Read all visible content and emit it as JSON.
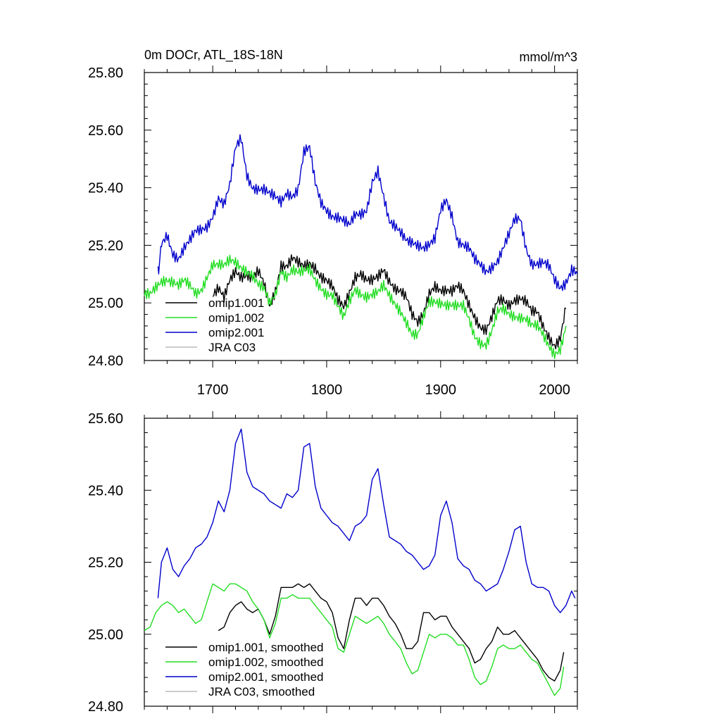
{
  "chart_data": [
    {
      "type": "line",
      "title": "0m DOCr, ATL_18S-18N",
      "units": "mmol/m^3",
      "xlim": [
        1640,
        2020
      ],
      "ylim": [
        24.8,
        25.8
      ],
      "yticks": [
        24.8,
        25.0,
        25.2,
        25.4,
        25.6,
        25.8
      ],
      "ytick_labels": [
        "24.80",
        "25.00",
        "25.20",
        "25.40",
        "25.60",
        "25.80"
      ],
      "xticks": [
        1700,
        1800,
        1900,
        2000
      ],
      "xtick_labels": [
        "1700",
        "1800",
        "1900",
        "2000"
      ],
      "legend": [
        "omip1.001",
        "omip1.002",
        "omip2.001",
        "JRA C03"
      ],
      "series": [
        {
          "name": "omip1.001",
          "color": "#000000",
          "x": [
            1700,
            1705,
            1710,
            1715,
            1720,
            1725,
            1730,
            1735,
            1740,
            1745,
            1750,
            1755,
            1760,
            1765,
            1770,
            1775,
            1780,
            1785,
            1790,
            1795,
            1800,
            1805,
            1810,
            1815,
            1820,
            1825,
            1830,
            1835,
            1840,
            1845,
            1850,
            1855,
            1860,
            1865,
            1870,
            1875,
            1880,
            1885,
            1890,
            1895,
            1900,
            1905,
            1910,
            1915,
            1920,
            1925,
            1930,
            1935,
            1940,
            1945,
            1950,
            1955,
            1960,
            1965,
            1970,
            1975,
            1980,
            1985,
            1990,
            1995,
            2000,
            2005,
            2010
          ],
          "values": [
            25.02,
            25.04,
            25.01,
            25.08,
            25.12,
            25.1,
            25.1,
            25.08,
            25.1,
            25.06,
            24.99,
            25.05,
            25.14,
            25.13,
            25.15,
            25.13,
            25.12,
            25.14,
            25.13,
            25.1,
            25.08,
            25.05,
            25.0,
            24.98,
            25.04,
            25.1,
            25.11,
            25.08,
            25.07,
            25.08,
            25.11,
            25.08,
            25.06,
            25.05,
            25.02,
            24.95,
            24.92,
            24.96,
            25.04,
            25.07,
            25.05,
            25.04,
            25.03,
            25.05,
            25.04,
            25.0,
            24.96,
            24.92,
            24.9,
            24.94,
            25.0,
            25.01,
            25.0,
            25.02,
            25.02,
            25.0,
            24.96,
            24.96,
            24.92,
            24.89,
            24.86,
            24.88,
            24.98
          ]
        },
        {
          "name": "omip1.002",
          "color": "#22dd22",
          "x": [
            1640,
            1645,
            1650,
            1655,
            1660,
            1665,
            1670,
            1675,
            1680,
            1685,
            1690,
            1695,
            1700,
            1705,
            1710,
            1715,
            1720,
            1725,
            1730,
            1735,
            1740,
            1745,
            1750,
            1755,
            1760,
            1765,
            1770,
            1775,
            1780,
            1785,
            1790,
            1795,
            1800,
            1805,
            1810,
            1815,
            1820,
            1825,
            1830,
            1835,
            1840,
            1845,
            1850,
            1855,
            1860,
            1865,
            1870,
            1875,
            1880,
            1885,
            1890,
            1895,
            1900,
            1905,
            1910,
            1915,
            1920,
            1925,
            1930,
            1935,
            1940,
            1945,
            1950,
            1955,
            1960,
            1965,
            1970,
            1975,
            1980,
            1985,
            1990,
            1995,
            2000,
            2005,
            2010
          ],
          "values": [
            25.02,
            25.02,
            25.05,
            25.08,
            25.09,
            25.08,
            25.06,
            25.07,
            25.05,
            25.03,
            25.05,
            25.1,
            25.14,
            25.13,
            25.12,
            25.14,
            25.14,
            25.13,
            25.12,
            25.1,
            25.06,
            25.04,
            24.99,
            25.03,
            25.12,
            25.1,
            25.12,
            25.1,
            25.1,
            25.11,
            25.08,
            25.06,
            25.04,
            25.03,
            24.98,
            24.94,
            25.0,
            25.05,
            25.04,
            25.03,
            25.03,
            25.03,
            25.05,
            25.02,
            25.0,
            24.98,
            24.94,
            24.89,
            24.88,
            24.94,
            25.0,
            25.01,
            25.01,
            25.0,
            24.99,
            24.98,
            24.98,
            24.94,
            24.89,
            24.87,
            24.86,
            24.9,
            24.96,
            24.97,
            24.96,
            24.96,
            24.96,
            24.95,
            24.92,
            24.91,
            24.88,
            24.85,
            24.83,
            24.85,
            24.92
          ]
        },
        {
          "name": "omip2.001",
          "color": "#0000cc",
          "x": [
            1652,
            1655,
            1660,
            1665,
            1670,
            1675,
            1680,
            1685,
            1690,
            1695,
            1700,
            1705,
            1710,
            1715,
            1720,
            1725,
            1730,
            1735,
            1740,
            1745,
            1750,
            1755,
            1760,
            1765,
            1770,
            1775,
            1780,
            1785,
            1790,
            1795,
            1800,
            1805,
            1810,
            1815,
            1820,
            1825,
            1830,
            1835,
            1840,
            1845,
            1850,
            1855,
            1860,
            1865,
            1870,
            1875,
            1880,
            1885,
            1890,
            1895,
            1900,
            1905,
            1910,
            1915,
            1920,
            1925,
            1930,
            1935,
            1940,
            1945,
            1950,
            1955,
            1960,
            1965,
            1970,
            1975,
            1980,
            1985,
            1990,
            1995,
            2000,
            2005,
            2010,
            2015,
            2020
          ],
          "values": [
            25.1,
            25.2,
            25.24,
            25.18,
            25.16,
            25.19,
            25.21,
            25.24,
            25.25,
            25.27,
            25.31,
            25.37,
            25.34,
            25.4,
            25.53,
            25.57,
            25.45,
            25.41,
            25.4,
            25.39,
            25.37,
            25.36,
            25.35,
            25.39,
            25.38,
            25.4,
            25.52,
            25.53,
            25.41,
            25.35,
            25.33,
            25.31,
            25.3,
            25.28,
            25.26,
            25.3,
            25.31,
            25.33,
            25.43,
            25.46,
            25.36,
            25.27,
            25.26,
            25.25,
            25.23,
            25.22,
            25.2,
            25.18,
            25.19,
            25.22,
            25.33,
            25.37,
            25.31,
            25.21,
            25.19,
            25.18,
            25.15,
            25.14,
            25.12,
            25.13,
            25.14,
            25.18,
            25.23,
            25.29,
            25.3,
            25.2,
            25.14,
            25.13,
            25.13,
            25.12,
            25.08,
            25.06,
            25.08,
            25.12,
            25.1
          ]
        },
        {
          "name": "JRA C03",
          "color": "#bbbbbb",
          "x": [],
          "values": []
        }
      ]
    },
    {
      "type": "line",
      "xlim": [
        1640,
        2020
      ],
      "ylim": [
        24.8,
        25.6
      ],
      "yticks": [
        24.8,
        25.0,
        25.2,
        25.4,
        25.6
      ],
      "ytick_labels": [
        "24.80",
        "25.00",
        "25.20",
        "25.40",
        "25.60"
      ],
      "xticks": [
        1700,
        1800,
        1900,
        2000
      ],
      "xtick_labels": [],
      "legend": [
        "omip1.001, smoothed",
        "omip1.002, smoothed",
        "omip2.001, smoothed",
        "JRA C03, smoothed"
      ],
      "series": [
        {
          "name": "omip1.001, smoothed",
          "color": "#000000",
          "x": [
            1705,
            1710,
            1715,
            1720,
            1725,
            1730,
            1735,
            1740,
            1745,
            1750,
            1755,
            1760,
            1765,
            1770,
            1775,
            1780,
            1785,
            1790,
            1795,
            1800,
            1805,
            1810,
            1815,
            1820,
            1825,
            1830,
            1835,
            1840,
            1845,
            1850,
            1855,
            1860,
            1865,
            1870,
            1875,
            1880,
            1885,
            1890,
            1895,
            1900,
            1905,
            1910,
            1915,
            1920,
            1925,
            1930,
            1935,
            1940,
            1945,
            1950,
            1955,
            1960,
            1965,
            1970,
            1975,
            1980,
            1985,
            1990,
            1995,
            2000,
            2005,
            2008
          ],
          "values": [
            25.01,
            25.02,
            25.06,
            25.08,
            25.09,
            25.07,
            25.06,
            25.07,
            25.04,
            25.0,
            25.05,
            25.13,
            25.13,
            25.13,
            25.14,
            25.13,
            25.14,
            25.12,
            25.1,
            25.09,
            25.06,
            24.99,
            24.96,
            25.04,
            25.1,
            25.1,
            25.08,
            25.1,
            25.1,
            25.08,
            25.05,
            25.03,
            25.0,
            24.96,
            24.96,
            24.98,
            25.06,
            25.06,
            25.04,
            25.05,
            25.05,
            25.02,
            25.0,
            24.98,
            24.96,
            24.92,
            24.93,
            24.96,
            24.98,
            25.02,
            25.0,
            25.0,
            25.01,
            24.99,
            24.97,
            24.95,
            24.93,
            24.9,
            24.88,
            24.87,
            24.9,
            24.95
          ]
        },
        {
          "name": "omip1.002, smoothed",
          "color": "#22dd22",
          "x": [
            1640,
            1645,
            1650,
            1655,
            1660,
            1665,
            1670,
            1675,
            1680,
            1685,
            1690,
            1695,
            1700,
            1705,
            1710,
            1715,
            1720,
            1725,
            1730,
            1735,
            1740,
            1745,
            1750,
            1755,
            1760,
            1765,
            1770,
            1775,
            1780,
            1785,
            1790,
            1795,
            1800,
            1805,
            1810,
            1815,
            1820,
            1825,
            1830,
            1835,
            1840,
            1845,
            1850,
            1855,
            1860,
            1865,
            1870,
            1875,
            1880,
            1885,
            1890,
            1895,
            1900,
            1905,
            1910,
            1915,
            1920,
            1925,
            1930,
            1935,
            1940,
            1945,
            1950,
            1955,
            1960,
            1965,
            1970,
            1975,
            1980,
            1985,
            1990,
            1995,
            2000,
            2005,
            2008
          ],
          "values": [
            25.01,
            25.02,
            25.06,
            25.08,
            25.09,
            25.08,
            25.06,
            25.07,
            25.05,
            25.03,
            25.04,
            25.09,
            25.14,
            25.13,
            25.12,
            25.14,
            25.14,
            25.13,
            25.12,
            25.09,
            25.07,
            25.04,
            24.99,
            25.03,
            25.1,
            25.1,
            25.11,
            25.1,
            25.1,
            25.1,
            25.08,
            25.06,
            25.04,
            25.02,
            24.96,
            24.95,
            25.0,
            25.05,
            25.04,
            25.03,
            25.04,
            25.05,
            25.03,
            25.0,
            24.98,
            24.96,
            24.92,
            24.89,
            24.9,
            24.95,
            25.0,
            24.99,
            25.0,
            25.0,
            24.99,
            24.97,
            24.97,
            24.93,
            24.88,
            24.86,
            24.87,
            24.91,
            24.96,
            24.97,
            24.96,
            24.96,
            24.97,
            24.95,
            24.93,
            24.92,
            24.89,
            24.86,
            24.83,
            24.85,
            24.91
          ]
        },
        {
          "name": "omip2.001, smoothed",
          "color": "#0000cc",
          "x": [
            1652,
            1655,
            1660,
            1665,
            1670,
            1675,
            1680,
            1685,
            1690,
            1695,
            1700,
            1705,
            1710,
            1715,
            1720,
            1725,
            1730,
            1735,
            1740,
            1745,
            1750,
            1755,
            1760,
            1765,
            1770,
            1775,
            1780,
            1785,
            1790,
            1795,
            1800,
            1805,
            1810,
            1815,
            1820,
            1825,
            1830,
            1835,
            1840,
            1845,
            1850,
            1855,
            1860,
            1865,
            1870,
            1875,
            1880,
            1885,
            1890,
            1895,
            1900,
            1905,
            1910,
            1915,
            1920,
            1925,
            1930,
            1935,
            1940,
            1945,
            1950,
            1955,
            1960,
            1965,
            1970,
            1975,
            1980,
            1985,
            1990,
            1995,
            2000,
            2005,
            2010,
            2015,
            2018
          ],
          "values": [
            25.1,
            25.2,
            25.24,
            25.18,
            25.16,
            25.19,
            25.21,
            25.24,
            25.25,
            25.27,
            25.31,
            25.37,
            25.34,
            25.4,
            25.53,
            25.57,
            25.45,
            25.41,
            25.4,
            25.39,
            25.37,
            25.36,
            25.35,
            25.39,
            25.38,
            25.4,
            25.52,
            25.53,
            25.41,
            25.35,
            25.33,
            25.31,
            25.3,
            25.28,
            25.26,
            25.3,
            25.31,
            25.33,
            25.43,
            25.46,
            25.36,
            25.27,
            25.26,
            25.25,
            25.23,
            25.22,
            25.2,
            25.18,
            25.19,
            25.22,
            25.33,
            25.37,
            25.31,
            25.21,
            25.19,
            25.18,
            25.15,
            25.14,
            25.12,
            25.13,
            25.14,
            25.18,
            25.23,
            25.29,
            25.3,
            25.2,
            25.14,
            25.13,
            25.13,
            25.12,
            25.08,
            25.06,
            25.08,
            25.12,
            25.1
          ]
        },
        {
          "name": "JRA C03, smoothed",
          "color": "#bbbbbb",
          "x": [],
          "values": []
        }
      ]
    }
  ]
}
